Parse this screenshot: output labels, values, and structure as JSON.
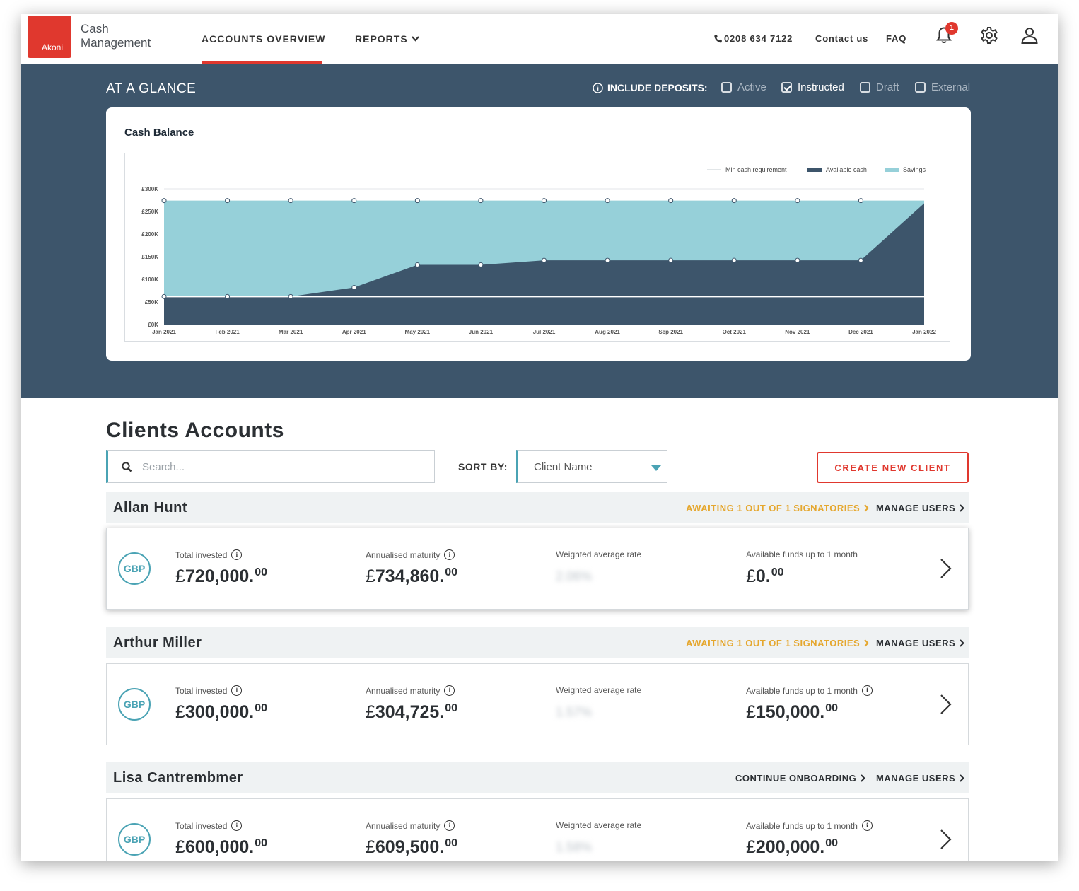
{
  "brand": {
    "logo_text": "Akoni",
    "name_line1": "Cash",
    "name_line2": "Management"
  },
  "nav": {
    "tab_accounts": "ACCOUNTS OVERVIEW",
    "tab_reports": "REPORTS",
    "phone": "0208 634 7122",
    "contact": "Contact us",
    "faq": "FAQ",
    "notification_count": "1"
  },
  "glance": {
    "title": "AT A GLANCE",
    "include_label": "INCLUDE DEPOSITS:",
    "filters": [
      {
        "label": "Active",
        "checked": false
      },
      {
        "label": "Instructed",
        "checked": true
      },
      {
        "label": "Draft",
        "checked": false
      },
      {
        "label": "External",
        "checked": false
      }
    ]
  },
  "chart_data": {
    "type": "area",
    "title": "Cash Balance",
    "categories": [
      "Jan 2021",
      "Feb 2021",
      "Mar 2021",
      "Apr 2021",
      "May 2021",
      "Jun 2021",
      "Jul 2021",
      "Aug 2021",
      "Sep 2021",
      "Oct 2021",
      "Nov 2021",
      "Dec 2021",
      "Jan 2022"
    ],
    "yticks": [
      "£0K",
      "£50K",
      "£100K",
      "£150K",
      "£200K",
      "£250K",
      "£300K"
    ],
    "ylim": [
      0,
      300
    ],
    "series": [
      {
        "name": "Min cash requirement",
        "color": "#ffffff",
        "values": [
          62,
          62,
          62,
          62,
          62,
          62,
          62,
          62,
          62,
          62,
          62,
          62,
          62
        ]
      },
      {
        "name": "Available cash",
        "color": "#3d556b",
        "values": [
          62,
          62,
          62,
          82,
          132,
          132,
          142,
          142,
          142,
          142,
          142,
          142,
          268
        ]
      },
      {
        "name": "Savings",
        "color": "#96d0d9",
        "values": [
          274,
          274,
          274,
          274,
          274,
          274,
          274,
          274,
          274,
          274,
          274,
          274,
          274
        ]
      }
    ],
    "legend": "top-right",
    "grid": false
  },
  "clients": {
    "title": "Clients Accounts",
    "search_placeholder": "Search...",
    "sort_label": "SORT BY:",
    "sort_value": "Client Name",
    "create_label": "CREATE NEW CLIENT",
    "manage_label": "MANAGE USERS",
    "label_total": "Total invested",
    "label_maturity": "Annualised maturity",
    "label_rate": "Weighted average rate",
    "label_funds": "Available funds up to 1 month",
    "currency": "GBP",
    "symbol": "£",
    "items": [
      {
        "name": "Allan Hunt",
        "status": "AWAITING 1 OUT OF 1 SIGNATORIES",
        "total": "720,000.",
        "total_dec": "00",
        "maturity": "734,860.",
        "maturity_dec": "00",
        "rate": "2.06%",
        "funds": "0.",
        "funds_dec": "00"
      },
      {
        "name": "Arthur Miller",
        "status": "AWAITING 1 OUT OF 1 SIGNATORIES",
        "total": "300,000.",
        "total_dec": "00",
        "maturity": "304,725.",
        "maturity_dec": "00",
        "rate": "1.57%",
        "funds": "150,000.",
        "funds_dec": "00"
      },
      {
        "name": "Lisa Cantrembmer",
        "status": "CONTINUE ONBOARDING",
        "total": "600,000.",
        "total_dec": "00",
        "maturity": "609,500.",
        "maturity_dec": "00",
        "rate": "1.58%",
        "funds": "200,000.",
        "funds_dec": "00"
      }
    ]
  }
}
